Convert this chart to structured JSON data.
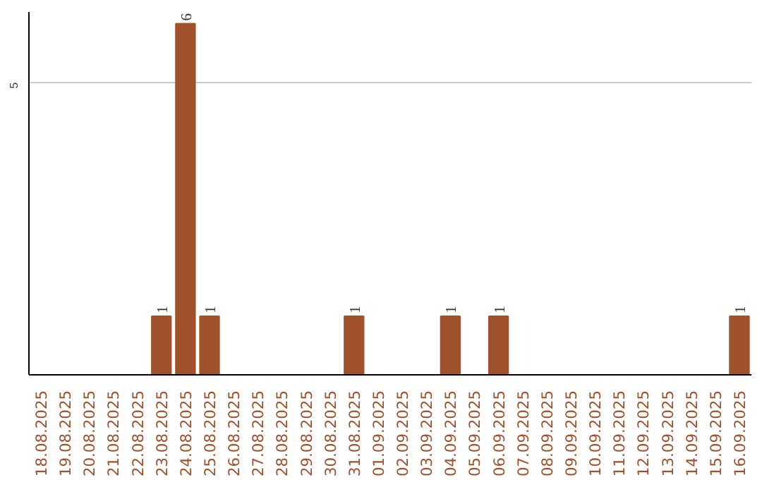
{
  "chart_data": {
    "type": "bar",
    "categories": [
      "18.08.2025",
      "19.08.2025",
      "20.08.2025",
      "21.08.2025",
      "22.08.2025",
      "23.08.2025",
      "24.08.2025",
      "25.08.2025",
      "26.08.2025",
      "27.08.2025",
      "28.08.2025",
      "29.08.2025",
      "30.08.2025",
      "31.08.2025",
      "01.09.2025",
      "02.09.2025",
      "03.09.2025",
      "04.09.2025",
      "05.09.2025",
      "06.09.2025",
      "07.09.2025",
      "08.09.2025",
      "09.09.2025",
      "10.09.2025",
      "11.09.2025",
      "12.09.2025",
      "13.09.2025",
      "14.09.2025",
      "15.09.2025",
      "16.09.2025"
    ],
    "values": [
      0,
      0,
      0,
      0,
      0,
      1,
      6,
      1,
      0,
      0,
      0,
      0,
      0,
      1,
      0,
      0,
      0,
      1,
      0,
      1,
      0,
      0,
      0,
      0,
      0,
      0,
      0,
      0,
      0,
      1
    ],
    "value_labels": [
      null,
      null,
      null,
      null,
      null,
      "1",
      "6",
      "1",
      null,
      null,
      null,
      null,
      null,
      "1",
      null,
      null,
      null,
      "1",
      null,
      "1",
      null,
      null,
      null,
      null,
      null,
      null,
      null,
      null,
      null,
      "1"
    ],
    "color": "#a0522d",
    "ylim": [
      0,
      6.2
    ],
    "yticks": [
      5
    ],
    "grid": "y"
  }
}
